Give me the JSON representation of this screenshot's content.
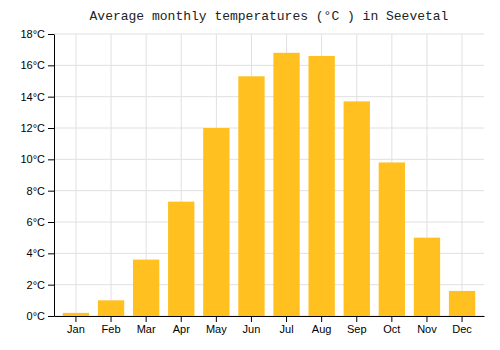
{
  "chart_data": {
    "type": "bar",
    "title": "Average monthly temperatures (°C ) in Seevetal",
    "categories": [
      "Jan",
      "Feb",
      "Mar",
      "Apr",
      "May",
      "Jun",
      "Jul",
      "Aug",
      "Sep",
      "Oct",
      "Nov",
      "Dec"
    ],
    "values": [
      0.2,
      1.0,
      3.6,
      7.3,
      12.0,
      15.3,
      16.8,
      16.6,
      13.7,
      9.8,
      5.0,
      1.6
    ],
    "color": "#FFC020",
    "ylim": [
      0,
      18
    ],
    "yticks": [
      {
        "value": 0,
        "label": "0°C"
      },
      {
        "value": 2,
        "label": "2°C"
      },
      {
        "value": 4,
        "label": "4°C"
      },
      {
        "value": 6,
        "label": "6°C"
      },
      {
        "value": 8,
        "label": "8°C"
      },
      {
        "value": 10,
        "label": "10°C"
      },
      {
        "value": 12,
        "label": "12°C"
      },
      {
        "value": 14,
        "label": "14°C"
      },
      {
        "value": 16,
        "label": "16°C"
      },
      {
        "value": 18,
        "label": "18°C"
      }
    ],
    "grid": true
  }
}
